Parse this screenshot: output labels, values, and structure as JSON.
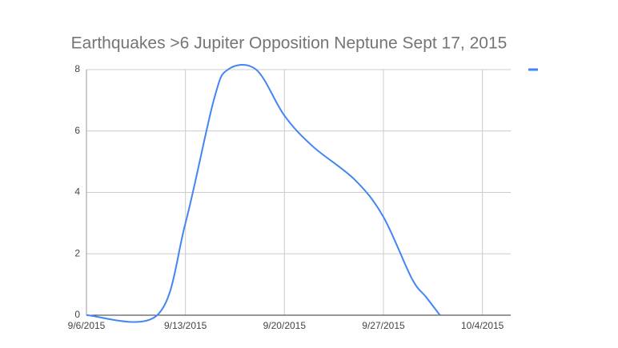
{
  "chart_data": {
    "type": "line",
    "title": "Earthquakes >6 Jupiter Opposition Neptune Sept 17, 2015",
    "x": [
      "2015-09-06",
      "2015-09-11",
      "2015-09-13",
      "2015-09-15",
      "2015-09-16",
      "2015-09-18",
      "2015-09-20",
      "2015-09-22",
      "2015-09-25",
      "2015-09-27",
      "2015-09-29",
      "2015-09-30",
      "2015-10-01"
    ],
    "series": [
      {
        "color": "#4285f4",
        "values": [
          0,
          0,
          3,
          7,
          8,
          8,
          6.5,
          5.5,
          4.4,
          3.2,
          1.2,
          0.6,
          0
        ]
      }
    ],
    "xlim": [
      "2015-09-06",
      "2015-10-06"
    ],
    "xticks": [
      {
        "value": "2015-09-06",
        "label": "9/6/2015"
      },
      {
        "value": "2015-09-13",
        "label": "9/13/2015"
      },
      {
        "value": "2015-09-20",
        "label": "9/20/2015"
      },
      {
        "value": "2015-09-27",
        "label": "9/27/2015"
      },
      {
        "value": "2015-10-04",
        "label": "10/4/2015"
      }
    ],
    "ylim": [
      0,
      8
    ],
    "yticks": [
      0,
      2,
      4,
      6,
      8
    ],
    "grid": true
  }
}
